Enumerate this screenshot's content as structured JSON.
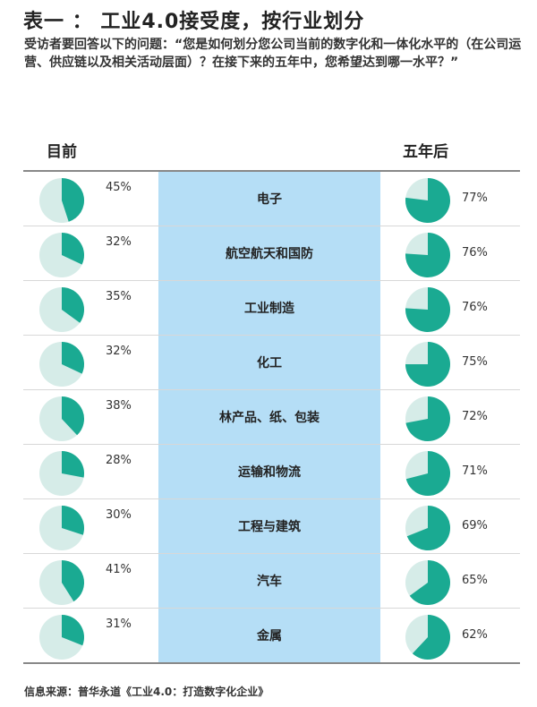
{
  "title": "表一 ： 工业4.0接受度，按行业划分",
  "subtitle": "受访者要回答以下的问题：“您是如何划分您公司当前的数字化和一体化水平的（在公司运营、供应链以及相关活动层面）？在接下来的五年中，您希望达到哪一水平？”",
  "source": "信息来源：普华永道《工业4.0：打造数字化企业》",
  "chart_data": {
    "type": "pie",
    "column_headers": {
      "current": "目前",
      "future": "五年后"
    },
    "colors": {
      "filled": "#1aaa92",
      "remainder": "#d6ece8",
      "category_band": "#b5def6"
    },
    "categories": [
      "电子",
      "航空航天和国防",
      "工业制造",
      "化工",
      "林产品、纸、包装",
      "运输和物流",
      "工程与建筑",
      "汽车",
      "金属"
    ],
    "series": [
      {
        "name": "目前",
        "values": [
          45,
          32,
          35,
          32,
          38,
          28,
          30,
          41,
          31
        ],
        "labels": [
          "45%",
          "32%",
          "35%",
          "32%",
          "38%",
          "28%",
          "30%",
          "41%",
          "31%"
        ]
      },
      {
        "name": "五年后",
        "values": [
          77,
          76,
          76,
          75,
          72,
          71,
          69,
          65,
          62
        ],
        "labels": [
          "77%",
          "76%",
          "76%",
          "75%",
          "72%",
          "71%",
          "69%",
          "65%",
          "62%"
        ]
      }
    ]
  }
}
